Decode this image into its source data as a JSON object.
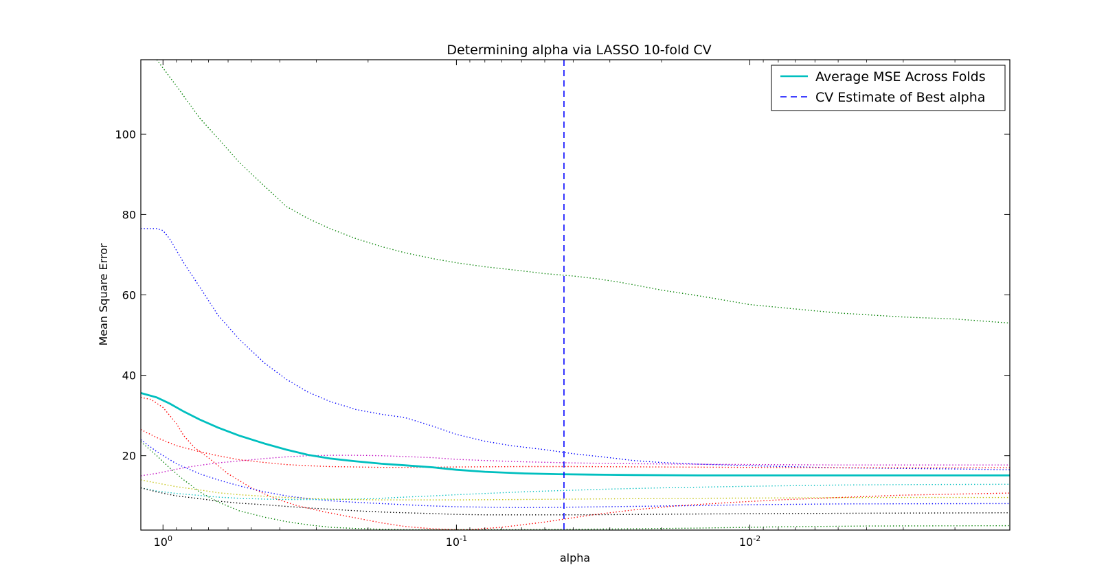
{
  "chart_data": {
    "type": "line",
    "title": "Determining alpha via LASSO 10-fold CV",
    "xlabel": "alpha",
    "ylabel": "Mean Square Error",
    "x_scale": "log",
    "x_reversed": true,
    "xlim": [
      1.19,
      0.0013
    ],
    "ylim": [
      1.5,
      118.5
    ],
    "x_ticks": [
      1,
      0.1,
      0.01
    ],
    "x_tick_labels": [
      {
        "base": "10",
        "exp": "0"
      },
      {
        "base": "10",
        "exp": "-1"
      },
      {
        "base": "10",
        "exp": "-2"
      }
    ],
    "y_ticks": [
      20,
      40,
      60,
      80,
      100
    ],
    "y_tick_labels": [
      "20",
      "40",
      "60",
      "80",
      "100"
    ],
    "grid": false,
    "legend": {
      "position": "top-right",
      "entries": [
        {
          "label": "Average MSE Across Folds",
          "color": "#00bfbf",
          "style": "solid"
        },
        {
          "label": "CV Estimate of Best alpha",
          "color": "#0000ff",
          "style": "dashed"
        }
      ]
    },
    "best_alpha": 0.043,
    "average_series": {
      "name": "Average MSE Across Folds",
      "color": "#00bfbf",
      "points": [
        [
          1.19,
          35.6
        ],
        [
          1.05,
          34.5
        ],
        [
          0.95,
          33
        ],
        [
          0.85,
          31
        ],
        [
          0.75,
          29
        ],
        [
          0.65,
          27
        ],
        [
          0.55,
          25
        ],
        [
          0.45,
          23
        ],
        [
          0.38,
          21.5
        ],
        [
          0.32,
          20.2
        ],
        [
          0.27,
          19.3
        ],
        [
          0.22,
          18.6
        ],
        [
          0.18,
          18
        ],
        [
          0.15,
          17.6
        ],
        [
          0.12,
          17.1
        ],
        [
          0.1,
          16.5
        ],
        [
          0.08,
          16
        ],
        [
          0.06,
          15.6
        ],
        [
          0.045,
          15.4
        ],
        [
          0.035,
          15.3
        ],
        [
          0.025,
          15.2
        ],
        [
          0.015,
          15.1
        ],
        [
          0.01,
          15.1
        ],
        [
          0.005,
          15.1
        ],
        [
          0.0013,
          15.1
        ]
      ]
    },
    "fold_series": [
      {
        "color": "#008000",
        "points": [
          [
            1.05,
            118.5
          ],
          [
            0.9,
            112
          ],
          [
            0.75,
            104
          ],
          [
            0.65,
            99
          ],
          [
            0.55,
            93
          ],
          [
            0.45,
            87
          ],
          [
            0.38,
            82
          ],
          [
            0.32,
            79
          ],
          [
            0.27,
            76.5
          ],
          [
            0.22,
            74
          ],
          [
            0.18,
            72
          ],
          [
            0.15,
            70.5
          ],
          [
            0.12,
            69
          ],
          [
            0.1,
            68
          ],
          [
            0.08,
            67
          ],
          [
            0.06,
            66
          ],
          [
            0.05,
            65.3
          ],
          [
            0.04,
            64.7
          ],
          [
            0.033,
            64
          ],
          [
            0.028,
            63.2
          ],
          [
            0.024,
            62.3
          ],
          [
            0.02,
            61.2
          ],
          [
            0.015,
            59.8
          ],
          [
            0.012,
            58.6
          ],
          [
            0.01,
            57.6
          ],
          [
            0.007,
            56.5
          ],
          [
            0.005,
            55.5
          ],
          [
            0.003,
            54.5
          ],
          [
            0.002,
            54
          ],
          [
            0.0013,
            53
          ]
        ]
      },
      {
        "color": "#0000ff",
        "points": [
          [
            1.19,
            76.5
          ],
          [
            1.05,
            76.5
          ],
          [
            1,
            76
          ],
          [
            0.95,
            74
          ],
          [
            0.85,
            68
          ],
          [
            0.75,
            62
          ],
          [
            0.65,
            55
          ],
          [
            0.55,
            49
          ],
          [
            0.45,
            43
          ],
          [
            0.38,
            39
          ],
          [
            0.32,
            35.8
          ],
          [
            0.27,
            33.5
          ],
          [
            0.22,
            31.5
          ],
          [
            0.18,
            30.3
          ],
          [
            0.15,
            29.5
          ],
          [
            0.12,
            27.3
          ],
          [
            0.1,
            25.3
          ],
          [
            0.08,
            23.6
          ],
          [
            0.065,
            22.5
          ],
          [
            0.05,
            21.5
          ],
          [
            0.04,
            20.5
          ],
          [
            0.03,
            19.5
          ],
          [
            0.025,
            18.8
          ],
          [
            0.02,
            18.3
          ],
          [
            0.015,
            17.9
          ],
          [
            0.01,
            17.5
          ],
          [
            0.005,
            17
          ],
          [
            0.002,
            16.7
          ],
          [
            0.0013,
            16.5
          ]
        ]
      },
      {
        "color": "#bf00bf",
        "points": [
          [
            1.19,
            15
          ],
          [
            1.05,
            15.6
          ],
          [
            0.95,
            16.3
          ],
          [
            0.85,
            17
          ],
          [
            0.75,
            17.6
          ],
          [
            0.65,
            18.2
          ],
          [
            0.55,
            18.7
          ],
          [
            0.45,
            19.3
          ],
          [
            0.38,
            19.7
          ],
          [
            0.32,
            20
          ],
          [
            0.27,
            20.1
          ],
          [
            0.22,
            20.1
          ],
          [
            0.18,
            20
          ],
          [
            0.15,
            19.8
          ],
          [
            0.12,
            19.5
          ],
          [
            0.1,
            19.1
          ],
          [
            0.08,
            18.8
          ],
          [
            0.06,
            18.5
          ],
          [
            0.04,
            18.2
          ],
          [
            0.025,
            18
          ],
          [
            0.01,
            17.8
          ],
          [
            0.005,
            17.7
          ],
          [
            0.0013,
            17.7
          ]
        ]
      },
      {
        "color": "#ff0000",
        "points": [
          [
            1.19,
            34.5
          ],
          [
            1.1,
            34
          ],
          [
            1,
            32
          ],
          [
            0.9,
            28
          ],
          [
            0.85,
            25
          ],
          [
            0.78,
            22
          ],
          [
            0.7,
            19.5
          ],
          [
            0.6,
            15.5
          ],
          [
            0.5,
            12
          ],
          [
            0.42,
            9.5
          ],
          [
            0.35,
            7.6
          ],
          [
            0.28,
            6
          ],
          [
            0.22,
            4.5
          ],
          [
            0.18,
            3.3
          ],
          [
            0.15,
            2.4
          ],
          [
            0.12,
            1.8
          ],
          [
            0.1,
            1.6
          ],
          [
            0.09,
            1.6
          ],
          [
            0.07,
            2.2
          ],
          [
            0.05,
            3.5
          ],
          [
            0.035,
            5.2
          ],
          [
            0.025,
            6.5
          ],
          [
            0.018,
            7.5
          ],
          [
            0.012,
            8.3
          ],
          [
            0.008,
            9
          ],
          [
            0.005,
            9.6
          ],
          [
            0.003,
            10.2
          ],
          [
            0.0013,
            10.7
          ]
        ]
      },
      {
        "color": "#ff0000",
        "points": [
          [
            1.19,
            26.5
          ],
          [
            1.05,
            24.5
          ],
          [
            0.9,
            22.5
          ],
          [
            0.75,
            21
          ],
          [
            0.65,
            20
          ],
          [
            0.55,
            19
          ],
          [
            0.45,
            18.3
          ],
          [
            0.38,
            17.8
          ],
          [
            0.32,
            17.5
          ],
          [
            0.27,
            17.3
          ],
          [
            0.22,
            17.2
          ],
          [
            0.18,
            17.1
          ],
          [
            0.15,
            17.1
          ],
          [
            0.1,
            17.2
          ],
          [
            0.06,
            17.3
          ],
          [
            0.04,
            17.3
          ],
          [
            0.02,
            17.2
          ],
          [
            0.01,
            17.1
          ],
          [
            0.005,
            17
          ],
          [
            0.0013,
            17
          ]
        ]
      },
      {
        "color": "#0000ff",
        "points": [
          [
            1.19,
            24
          ],
          [
            1.05,
            21
          ],
          [
            0.9,
            18
          ],
          [
            0.75,
            15.5
          ],
          [
            0.65,
            14
          ],
          [
            0.55,
            12.5
          ],
          [
            0.45,
            11
          ],
          [
            0.38,
            10
          ],
          [
            0.32,
            9.3
          ],
          [
            0.27,
            8.8
          ],
          [
            0.22,
            8.4
          ],
          [
            0.18,
            8.1
          ],
          [
            0.15,
            7.8
          ],
          [
            0.12,
            7.5
          ],
          [
            0.1,
            7.3
          ],
          [
            0.08,
            7.2
          ],
          [
            0.06,
            7.1
          ],
          [
            0.04,
            7.2
          ],
          [
            0.025,
            7.4
          ],
          [
            0.015,
            7.6
          ],
          [
            0.01,
            7.8
          ],
          [
            0.005,
            8
          ],
          [
            0.0013,
            8.1
          ]
        ]
      },
      {
        "color": "#008000",
        "points": [
          [
            1.19,
            23.5
          ],
          [
            1.05,
            20
          ],
          [
            0.95,
            17
          ],
          [
            0.85,
            14
          ],
          [
            0.75,
            11
          ],
          [
            0.65,
            8.5
          ],
          [
            0.55,
            6.3
          ],
          [
            0.45,
            4.7
          ],
          [
            0.38,
            3.6
          ],
          [
            0.32,
            2.8
          ],
          [
            0.27,
            2.2
          ],
          [
            0.22,
            1.9
          ],
          [
            0.18,
            1.7
          ],
          [
            0.15,
            1.6
          ],
          [
            0.1,
            1.6
          ],
          [
            0.06,
            1.6
          ],
          [
            0.04,
            1.7
          ],
          [
            0.025,
            1.8
          ],
          [
            0.015,
            2
          ],
          [
            0.008,
            2.3
          ],
          [
            0.004,
            2.5
          ],
          [
            0.0013,
            2.6
          ]
        ]
      },
      {
        "color": "#00bfbf",
        "points": [
          [
            1.19,
            12
          ],
          [
            1.05,
            11.2
          ],
          [
            0.9,
            10.6
          ],
          [
            0.75,
            10.1
          ],
          [
            0.65,
            9.7
          ],
          [
            0.55,
            9.4
          ],
          [
            0.45,
            9.2
          ],
          [
            0.38,
            9.1
          ],
          [
            0.32,
            9.1
          ],
          [
            0.27,
            9.1
          ],
          [
            0.22,
            9.2
          ],
          [
            0.18,
            9.4
          ],
          [
            0.15,
            9.7
          ],
          [
            0.12,
            10
          ],
          [
            0.1,
            10.3
          ],
          [
            0.08,
            10.6
          ],
          [
            0.06,
            11
          ],
          [
            0.045,
            11.3
          ],
          [
            0.03,
            11.7
          ],
          [
            0.02,
            12
          ],
          [
            0.012,
            12.3
          ],
          [
            0.008,
            12.5
          ],
          [
            0.005,
            12.7
          ],
          [
            0.003,
            12.8
          ],
          [
            0.0013,
            12.9
          ]
        ]
      },
      {
        "color": "#bfbf00",
        "points": [
          [
            1.19,
            14
          ],
          [
            1.05,
            13.2
          ],
          [
            0.9,
            12.3
          ],
          [
            0.75,
            11.5
          ],
          [
            0.65,
            10.8
          ],
          [
            0.55,
            10.3
          ],
          [
            0.45,
            9.9
          ],
          [
            0.38,
            9.6
          ],
          [
            0.32,
            9.4
          ],
          [
            0.27,
            9.2
          ],
          [
            0.22,
            9.1
          ],
          [
            0.18,
            9
          ],
          [
            0.15,
            9
          ],
          [
            0.1,
            9
          ],
          [
            0.06,
            9.1
          ],
          [
            0.04,
            9.2
          ],
          [
            0.025,
            9.3
          ],
          [
            0.015,
            9.4
          ],
          [
            0.008,
            9.5
          ],
          [
            0.004,
            9.6
          ],
          [
            0.0013,
            9.6
          ]
        ]
      },
      {
        "color": "#000000",
        "points": [
          [
            1.19,
            12
          ],
          [
            1.05,
            11
          ],
          [
            0.9,
            10
          ],
          [
            0.75,
            9.3
          ],
          [
            0.65,
            8.7
          ],
          [
            0.55,
            8.2
          ],
          [
            0.45,
            7.8
          ],
          [
            0.38,
            7.4
          ],
          [
            0.32,
            7
          ],
          [
            0.27,
            6.7
          ],
          [
            0.22,
            6.3
          ],
          [
            0.18,
            6
          ],
          [
            0.15,
            5.8
          ],
          [
            0.12,
            5.6
          ],
          [
            0.1,
            5.4
          ],
          [
            0.08,
            5.3
          ],
          [
            0.06,
            5.3
          ],
          [
            0.04,
            5.3
          ],
          [
            0.025,
            5.4
          ],
          [
            0.015,
            5.5
          ],
          [
            0.008,
            5.6
          ],
          [
            0.004,
            5.7
          ],
          [
            0.0013,
            5.8
          ]
        ]
      }
    ]
  }
}
